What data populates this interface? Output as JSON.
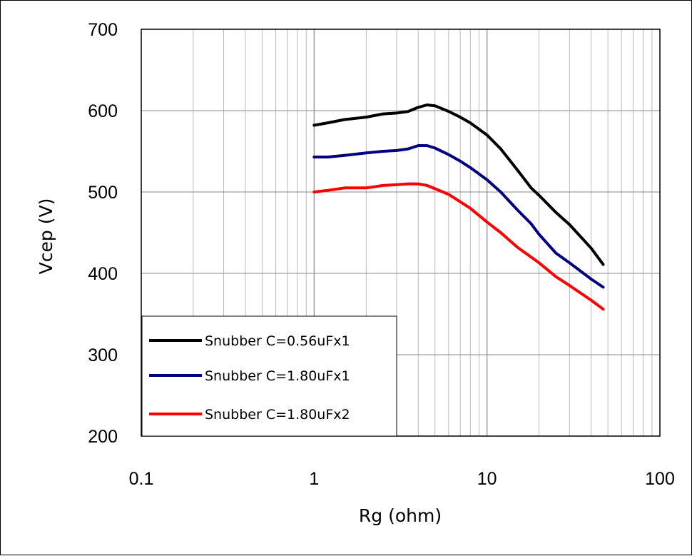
{
  "chart_data": {
    "type": "line",
    "title": "",
    "xlabel": "Rg (ohm)",
    "ylabel": "Vcep (V)",
    "xscale": "log",
    "xlim": [
      0.1,
      100
    ],
    "ylim": [
      200,
      700
    ],
    "xticks": [
      "0.1",
      "1",
      "10",
      "100"
    ],
    "yticks": [
      "200",
      "300",
      "400",
      "500",
      "600",
      "700"
    ],
    "grid": true,
    "legend_position": "bottom-left",
    "series": [
      {
        "name": "Snubber C=0.56uFx1",
        "color": "#000000",
        "x": [
          1.0,
          1.2,
          1.5,
          2.0,
          2.5,
          3.0,
          3.5,
          4.0,
          4.5,
          5.0,
          6.0,
          7.0,
          8.0,
          10,
          12,
          15,
          18,
          20,
          25,
          30,
          40,
          47
        ],
        "y": [
          582,
          585,
          589,
          592,
          596,
          597,
          599,
          604,
          607,
          606,
          599,
          592,
          585,
          570,
          553,
          527,
          505,
          496,
          475,
          460,
          431,
          411
        ]
      },
      {
        "name": "Snubber C=1.80uFx1",
        "color": "#000080",
        "x": [
          1.0,
          1.2,
          1.5,
          2.0,
          2.5,
          3.0,
          3.5,
          4.0,
          4.5,
          5.0,
          6.0,
          7.0,
          8.0,
          10,
          12,
          15,
          18,
          20,
          25,
          30,
          40,
          47
        ],
        "y": [
          543,
          543,
          545,
          548,
          550,
          551,
          553,
          557,
          557,
          554,
          546,
          538,
          530,
          515,
          500,
          478,
          461,
          448,
          425,
          413,
          393,
          383
        ]
      },
      {
        "name": "Snubber C=1.80uFx2",
        "color": "#ff0000",
        "x": [
          1.0,
          1.2,
          1.5,
          2.0,
          2.5,
          3.0,
          3.5,
          4.0,
          4.5,
          5.0,
          6.0,
          7.0,
          8.0,
          10,
          12,
          15,
          18,
          20,
          25,
          30,
          40,
          47
        ],
        "y": [
          500,
          502,
          505,
          505,
          508,
          509,
          510,
          510,
          508,
          504,
          497,
          488,
          480,
          463,
          450,
          432,
          420,
          413,
          396,
          385,
          367,
          356
        ]
      }
    ]
  }
}
